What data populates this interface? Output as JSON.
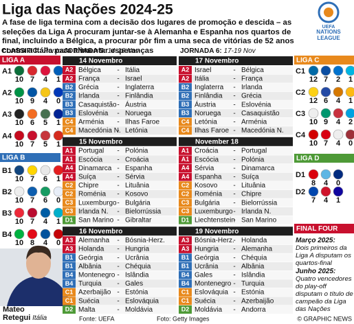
{
  "title": "Liga das Nações 2024-25",
  "intro": "A fase de liga termina com a decisão dos lugares de promoção e descida – as seleções da Liga A procuram juntar-se à Alemanha e Espanha nos quartos de final, incluindo a Bélgica, a procurar pôr fim a uma seca de vitórias de 52 anos contra a Itália para alimentar esperanças",
  "logo": [
    "UEFA",
    "NATIONS",
    "LEAGUE"
  ],
  "standings_header": {
    "label": "CLASSIFIC.:",
    "unit": "Pontos"
  },
  "league_colors": {
    "A": "#c8102e",
    "B": "#2f6fb7",
    "C": "#e8891c",
    "D": "#4e9a37"
  },
  "leagues": [
    {
      "name": "LIGA A",
      "groups": [
        {
          "label": "A1",
          "points": [
            10,
            7,
            4,
            1
          ],
          "flags": [
            "#0b6e3a",
            "#d8282e",
            "#dc143c",
            "#005eb8"
          ]
        },
        {
          "label": "A2",
          "points": [
            10,
            9,
            4,
            0
          ],
          "flags": [
            "#009246",
            "#0055a4",
            "#f5c518",
            "#0038b8"
          ]
        },
        {
          "label": "A3",
          "points": [
            10,
            6,
            5,
            1
          ],
          "flags": [
            "#222222",
            "#f36c21",
            "#477050",
            "#002395"
          ]
        },
        {
          "label": "A4",
          "points": [
            10,
            7,
            5,
            1
          ],
          "flags": [
            "#c60b1e",
            "#c8102e",
            "#c6363c",
            "#d52b1e"
          ]
        }
      ]
    },
    {
      "name": "LIGA B",
      "groups": [
        {
          "label": "B1",
          "points": [
            10,
            7,
            6,
            1
          ],
          "flags": [
            "#11457e",
            "#ffd500",
            "#e8e8e8",
            "#e41e20"
          ]
        },
        {
          "label": "B2",
          "points": [
            10,
            7,
            6,
            0
          ],
          "flags": [
            "#eeeeee",
            "#0d5eaf",
            "#169b62",
            "#e8eef8"
          ]
        },
        {
          "label": "B3",
          "points": [
            10,
            7,
            4,
            1
          ],
          "flags": [
            "#ed2939",
            "#ba0c2f",
            "#005da4",
            "#00afca"
          ]
        },
        {
          "label": "B4",
          "points": [
            10,
            8,
            4,
            0
          ],
          "flags": [
            "#00b140",
            "#e30a17",
            "#02529c",
            "#c40308"
          ]
        }
      ]
    },
    {
      "name": "LIGA C",
      "groups": [
        {
          "label": "C1",
          "points": [
            12,
            7,
            2,
            1
          ],
          "flags": [
            "#006aa7",
            "#0b4ea2",
            "#0072ce",
            "#00b5e2"
          ]
        },
        {
          "label": "C2",
          "points": [
            12,
            6,
            4,
            1
          ],
          "flags": [
            "#fcd116",
            "#244aa5",
            "#d57800",
            "#fdb913"
          ]
        },
        {
          "label": "C3",
          "points": [
            10,
            9,
            4,
            2
          ],
          "flags": [
            "#eeeeee",
            "#00966e",
            "#c8313e",
            "#00a2e1"
          ]
        },
        {
          "label": "C4",
          "points": [
            10,
            7,
            4,
            0
          ],
          "flags": [
            "#d20000",
            "#d90012",
            "#eeeeee",
            "#9e3039"
          ]
        }
      ]
    },
    {
      "name": "LIGA D",
      "groups": [
        {
          "label": "D1",
          "points": [
            8,
            4,
            0
          ],
          "flags": [
            "#da000c",
            "#5eb6e4",
            "#002b7f"
          ]
        },
        {
          "label": "D2",
          "points": [
            7,
            4,
            1
          ],
          "flags": [
            "#0046ae",
            "#cf142b",
            "#10069f"
          ]
        }
      ]
    }
  ],
  "separator": "-",
  "matchdays": [
    {
      "label": "JORNADA 5:",
      "dates_label": "14-16 Nov",
      "days": [
        {
          "date": "14 Novembro",
          "matches": [
            [
              "A2",
              "Bélgica",
              "Itália"
            ],
            [
              "A2",
              "França",
              "Israel"
            ],
            [
              "B2",
              "Grécia",
              "Inglaterra"
            ],
            [
              "B2",
              "Irlanda",
              "Finlândia"
            ],
            [
              "B3",
              "Casaquistão",
              "Áustria"
            ],
            [
              "B3",
              "Eslovénia",
              "Noruega"
            ],
            [
              "C4",
              "Arménia",
              "Ilhas Faroe"
            ],
            [
              "C4",
              "Macedónia N.",
              "Letónia"
            ]
          ]
        },
        {
          "date": "15 Novembro",
          "matches": [
            [
              "A1",
              "Portugal",
              "Polónia"
            ],
            [
              "A1",
              "Escócia",
              "Croácia"
            ],
            [
              "A4",
              "Dinamarca",
              "Espanha"
            ],
            [
              "A4",
              "Suíça",
              "Sérvia"
            ],
            [
              "C2",
              "Chipre",
              "Lituânia"
            ],
            [
              "C2",
              "Roménia",
              "Kosovo"
            ],
            [
              "C3",
              "Luxemburgo",
              "Bulgária"
            ],
            [
              "C3",
              "Irlanda N.",
              "Bielorrússia"
            ],
            [
              "D1",
              "San Marino",
              "Gibraltar"
            ]
          ]
        },
        {
          "date": "16 Novembro",
          "matches": [
            [
              "A3",
              "Alemanha",
              "Bósnia-Herz."
            ],
            [
              "A3",
              "Holanda",
              "Hungria"
            ],
            [
              "B1",
              "Geórgia",
              "Ucrânia"
            ],
            [
              "B1",
              "Albânia",
              "Chéquia"
            ],
            [
              "B4",
              "Montenegro",
              "Islândia"
            ],
            [
              "B4",
              "Turquia",
              "Gales"
            ],
            [
              "C1",
              "Azerbaijão",
              "Estónia"
            ],
            [
              "C1",
              "Suécia",
              "Eslováquia"
            ],
            [
              "D2",
              "Malta",
              "Moldávia"
            ]
          ]
        }
      ]
    },
    {
      "label": "JORNADA 6:",
      "dates_label": "17-19 Nov",
      "days": [
        {
          "date": "17 Novembro",
          "matches": [
            [
              "A2",
              "Israel",
              "Bélgica"
            ],
            [
              "A2",
              "Itália",
              "França"
            ],
            [
              "B2",
              "Inglaterra",
              "Irlanda"
            ],
            [
              "B2",
              "Finlândia",
              "Grécia"
            ],
            [
              "B3",
              "Áustria",
              "Eslovénia"
            ],
            [
              "B3",
              "Noruega",
              "Casaquistão"
            ],
            [
              "C4",
              "Letónia",
              "Arménia"
            ],
            [
              "C4",
              "Ilhas Faroe",
              "Macedónia N."
            ]
          ]
        },
        {
          "date": "November 18",
          "matches": [
            [
              "A1",
              "Croácia",
              "Portugal"
            ],
            [
              "A1",
              "Escócia",
              "Polónia"
            ],
            [
              "A4",
              "Sérvia",
              "Dinamarca"
            ],
            [
              "A4",
              "Espanha",
              "Suíça"
            ],
            [
              "C2",
              "Kosovo",
              "Lituânia"
            ],
            [
              "C2",
              "Roménia",
              "Chipre"
            ],
            [
              "C3",
              "Bulgária",
              "Bielorrússia"
            ],
            [
              "C3",
              "Luxemburgo",
              "Irlanda N."
            ],
            [
              "D1",
              "Liechtenstein",
              "San Marino"
            ]
          ]
        },
        {
          "date": "19 Novembro",
          "matches": [
            [
              "A3",
              "Bósnia-Herz.",
              "Holanda"
            ],
            [
              "A3",
              "Hungria",
              "Alemanha"
            ],
            [
              "B1",
              "Geórgia",
              "Chéquia"
            ],
            [
              "B1",
              "Ucrânia",
              "Albânia"
            ],
            [
              "B4",
              "Gales",
              "Islândia"
            ],
            [
              "B4",
              "Montenegro",
              "Turquia"
            ],
            [
              "C1",
              "Eslováquia",
              "Estónia"
            ],
            [
              "C1",
              "Suécia",
              "Azerbaijão"
            ],
            [
              "D2",
              "Moldávia",
              "Andorra"
            ]
          ]
        }
      ]
    }
  ],
  "final_four": {
    "title": "FINAL FOUR",
    "items": [
      {
        "when": "Março 2025:",
        "text": "Dois primeiros da Liga A disputam os quartos-final"
      },
      {
        "when": "Junho 2025:",
        "text": "Quatro vencedores do play-off disputam o título de campeão da Liga das Nações"
      }
    ]
  },
  "player": {
    "first": "Mateo",
    "last": "Retegui",
    "country": "Itália"
  },
  "source": "Fonte: UEFA",
  "photo": "Foto: Getty Images",
  "credit": "© GRAPHIC NEWS"
}
